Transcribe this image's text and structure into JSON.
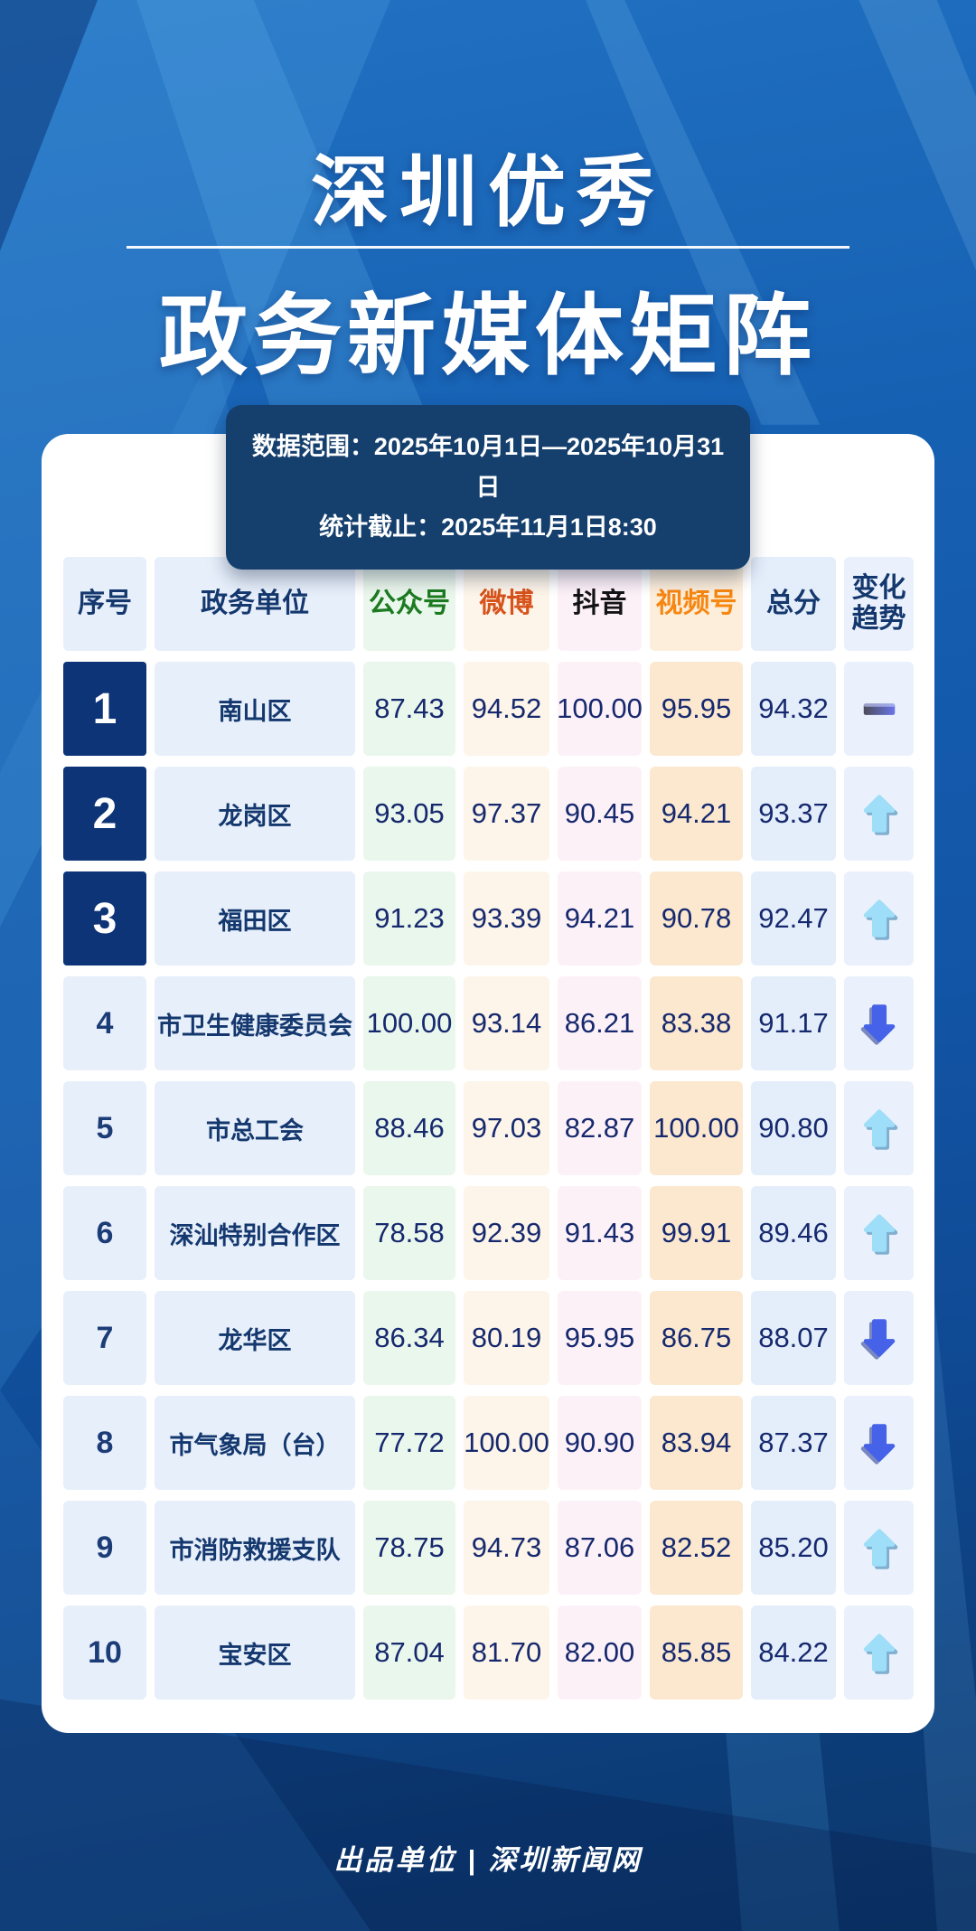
{
  "title": {
    "line1": "深圳优秀",
    "line2": "政务新媒体矩阵"
  },
  "banner": {
    "line1": "数据范围：2025年10月1日—2025年10月31日",
    "line2": "统计截止：2025年11月1日8:30"
  },
  "table": {
    "headers": [
      "序号",
      "政务单位",
      "公众号",
      "微博",
      "抖音",
      "视频号",
      "总分",
      "变化趋势"
    ],
    "rows": [
      {
        "rank": "1",
        "unit": "南山区",
        "gzh": "87.43",
        "weibo": "94.52",
        "douyin": "100.00",
        "sph": "95.95",
        "total": "94.32",
        "trend": "flat"
      },
      {
        "rank": "2",
        "unit": "龙岗区",
        "gzh": "93.05",
        "weibo": "97.37",
        "douyin": "90.45",
        "sph": "94.21",
        "total": "93.37",
        "trend": "up"
      },
      {
        "rank": "3",
        "unit": "福田区",
        "gzh": "91.23",
        "weibo": "93.39",
        "douyin": "94.21",
        "sph": "90.78",
        "total": "92.47",
        "trend": "up"
      },
      {
        "rank": "4",
        "unit": "市卫生健康委员会",
        "gzh": "100.00",
        "weibo": "93.14",
        "douyin": "86.21",
        "sph": "83.38",
        "total": "91.17",
        "trend": "down"
      },
      {
        "rank": "5",
        "unit": "市总工会",
        "gzh": "88.46",
        "weibo": "97.03",
        "douyin": "82.87",
        "sph": "100.00",
        "total": "90.80",
        "trend": "up"
      },
      {
        "rank": "6",
        "unit": "深汕特别合作区",
        "gzh": "78.58",
        "weibo": "92.39",
        "douyin": "91.43",
        "sph": "99.91",
        "total": "89.46",
        "trend": "up"
      },
      {
        "rank": "7",
        "unit": "龙华区",
        "gzh": "86.34",
        "weibo": "80.19",
        "douyin": "95.95",
        "sph": "86.75",
        "total": "88.07",
        "trend": "down"
      },
      {
        "rank": "8",
        "unit": "市气象局（台）",
        "gzh": "77.72",
        "weibo": "100.00",
        "douyin": "90.90",
        "sph": "83.94",
        "total": "87.37",
        "trend": "down"
      },
      {
        "rank": "9",
        "unit": "市消防救援支队",
        "gzh": "78.75",
        "weibo": "94.73",
        "douyin": "87.06",
        "sph": "82.52",
        "total": "85.20",
        "trend": "up"
      },
      {
        "rank": "10",
        "unit": "宝安区",
        "gzh": "87.04",
        "weibo": "81.70",
        "douyin": "82.00",
        "sph": "85.85",
        "total": "84.22",
        "trend": "up"
      }
    ]
  },
  "footer": {
    "credit": "出品单位 | 深圳新闻网"
  },
  "colors": {
    "background_blue": "#1356a8",
    "card_white": "#ffffff",
    "banner_navy": "#153f6d",
    "header_navy_text": "#14386e",
    "gzh_green": "#1c7a21",
    "weibo_orange_red": "#d8531c",
    "douyin_black": "#141414",
    "sph_orange": "#f68711",
    "rank_top3_navy": "#0d3477",
    "number_navy": "#16296e",
    "up_arrow_cyan": "#9edef8",
    "down_arrow_blue": "#4562e8"
  }
}
